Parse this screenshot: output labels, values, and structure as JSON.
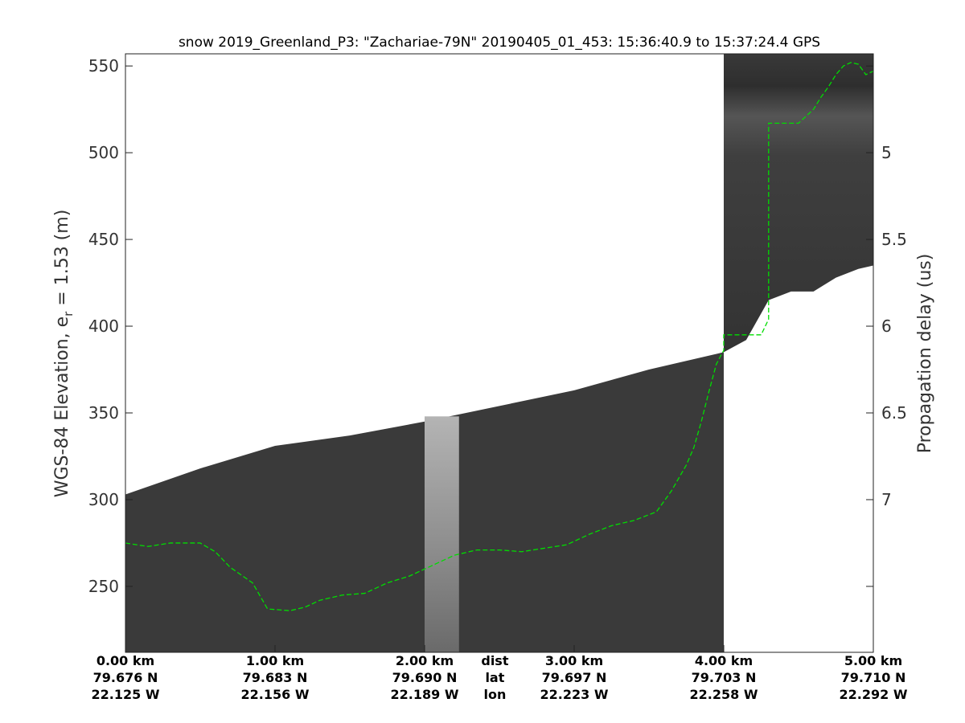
{
  "chart_data": {
    "type": "radargram",
    "title": "snow 2019_Greenland_P3: \"Zachariae-79N\"  20190405_01_453: 15:36:40.9 to 15:37:24.4 GPS",
    "ylabel_left_main": "WGS-84 Elevation, e",
    "ylabel_left_sub": "r",
    "ylabel_left_tail": " = 1.53 (m)",
    "ylabel_right": "Propagation delay (us)",
    "ylim": [
      212,
      557
    ],
    "y_ticks": [
      250,
      300,
      350,
      400,
      450,
      500,
      550
    ],
    "xlim_km": [
      0,
      5
    ],
    "right_axis": {
      "ticks": [
        5,
        5.5,
        6,
        6.5,
        7
      ],
      "tick_elevations": [
        500,
        450,
        400,
        350,
        300
      ]
    },
    "x_ticks": [
      {
        "x": 0,
        "dist": "0.00 km",
        "lat": "79.676 N",
        "lon": "22.125 W"
      },
      {
        "x": 1,
        "dist": "1.00 km",
        "lat": "79.683 N",
        "lon": "22.156 W"
      },
      {
        "x": 2,
        "dist": "2.00 km",
        "lat": "79.690 N",
        "lon": "22.189 W"
      },
      {
        "x": 3,
        "dist": "3.00 km",
        "lat": "79.697 N",
        "lon": "22.223 W"
      },
      {
        "x": 4,
        "dist": "4.00 km",
        "lat": "79.703 N",
        "lon": "22.258 W"
      },
      {
        "x": 5,
        "dist": "5.00 km",
        "lat": "79.710 N",
        "lon": "22.292 W"
      }
    ],
    "x_tick_row_labels": {
      "dist": "dist",
      "lat": "lat",
      "lon": "lon"
    },
    "x_tick_row_label_x": 2.47,
    "surface_top": {
      "x": [
        0,
        0.5,
        1.0,
        1.5,
        2.0,
        2.5,
        3.0,
        3.5,
        4.0
      ],
      "elevation": [
        303,
        318,
        331,
        337,
        345,
        354,
        363,
        375,
        385
      ]
    },
    "right_segment": {
      "x_start": 4.0,
      "bottom_x": [
        4.0,
        4.15,
        4.3,
        4.45,
        4.6,
        4.75,
        4.9,
        5.0
      ],
      "bottom_elevation": [
        385,
        392,
        415,
        420,
        420,
        428,
        433,
        435
      ]
    },
    "bright_band": {
      "x_start": 2.0,
      "x_end": 2.23,
      "top_elevation": 348
    },
    "traced_layer": {
      "color": "#00dd00",
      "x": [
        0,
        0.15,
        0.3,
        0.5,
        0.6,
        0.7,
        0.85,
        0.95,
        1.1,
        1.2,
        1.3,
        1.45,
        1.6,
        1.75,
        1.9,
        2.05,
        2.2,
        2.35,
        2.5,
        2.65,
        2.8,
        2.95,
        3.1,
        3.25,
        3.4,
        3.55,
        3.65,
        3.75,
        3.8,
        3.85,
        3.9,
        3.95,
        3.98,
        4.0,
        4.0,
        4.25,
        4.3,
        4.3,
        4.5,
        4.6,
        4.65,
        4.7,
        4.75,
        4.8,
        4.85,
        4.9,
        4.95,
        5.0
      ],
      "elevation": [
        275,
        273,
        275,
        275,
        270,
        261,
        252,
        237,
        236,
        238,
        242,
        245,
        246,
        252,
        256,
        262,
        268,
        271,
        271,
        270,
        272,
        274,
        280,
        285,
        288,
        293,
        305,
        320,
        330,
        345,
        362,
        378,
        383,
        386,
        395,
        395,
        404,
        517,
        517,
        525,
        532,
        538,
        545,
        550,
        552,
        551,
        545,
        547
      ]
    },
    "grid": false,
    "legend": "none"
  },
  "colors": {
    "radar_background": "#3a3a3a",
    "bright_band": "#9c9c9c",
    "trace": "#00dd00"
  }
}
